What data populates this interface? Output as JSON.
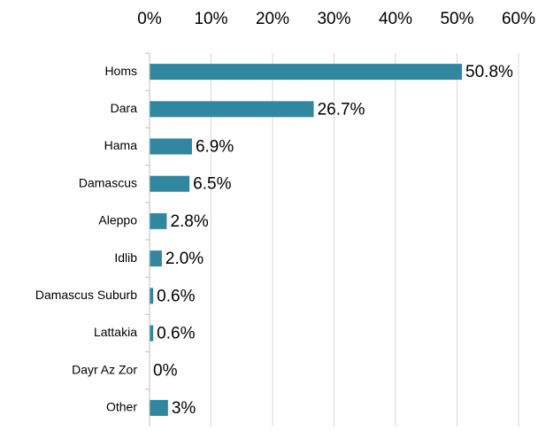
{
  "chart_data": {
    "type": "bar",
    "orientation": "horizontal",
    "categories": [
      "Homs",
      "Dara",
      "Hama",
      "Damascus",
      "Aleppo",
      "Idlib",
      "Damascus Suburb",
      "Lattakia",
      "Dayr Az Zor",
      "Other"
    ],
    "values": [
      50.8,
      26.7,
      6.9,
      6.5,
      2.8,
      2.0,
      0.6,
      0.6,
      0,
      3
    ],
    "value_labels": [
      "50.8%",
      "26.7%",
      "6.9%",
      "6.5%",
      "2.8%",
      "2.0%",
      "0.6%",
      "0.6%",
      "0%",
      "3%"
    ],
    "color": "#31879f",
    "xlim": [
      0,
      60
    ],
    "xticks": [
      {
        "value": 0,
        "label": "0%"
      },
      {
        "value": 10,
        "label": "10%"
      },
      {
        "value": 20,
        "label": "20%"
      },
      {
        "value": 30,
        "label": "30%"
      },
      {
        "value": 40,
        "label": "40%"
      },
      {
        "value": 50,
        "label": "50%"
      },
      {
        "value": 60,
        "label": "60%"
      }
    ],
    "grid": true
  }
}
